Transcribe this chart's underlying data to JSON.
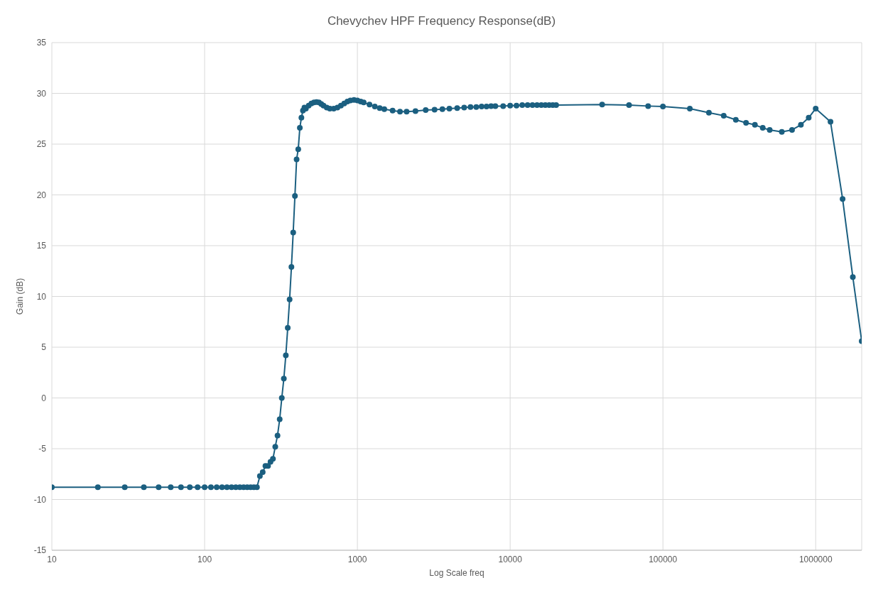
{
  "chart_data": {
    "type": "line",
    "title": "Chevychev HPF Frequency Response(dB)",
    "xlabel": "Log Scale freq",
    "ylabel": "Gain (dB)",
    "log": "x",
    "grid": true,
    "marker": "circle",
    "line_style": "solid",
    "xlim": [
      10,
      2000000
    ],
    "xticks": [
      10,
      100,
      1000,
      10000,
      100000,
      1000000
    ],
    "ylim": [
      -15,
      35
    ],
    "yticks": [
      -15,
      -10,
      -5,
      0,
      5,
      10,
      15,
      20,
      25,
      30,
      35
    ],
    "series": [
      {
        "color": "#1b5f80",
        "x": [
          10,
          20,
          30,
          40,
          50,
          60,
          70,
          80,
          90,
          100,
          110,
          120,
          130,
          140,
          150,
          160,
          170,
          180,
          190,
          200,
          210,
          220,
          230,
          240,
          250,
          260,
          270,
          280,
          290,
          300,
          310,
          320,
          330,
          340,
          350,
          360,
          370,
          380,
          390,
          400,
          410,
          420,
          430,
          440,
          450,
          460,
          480,
          500,
          520,
          540,
          560,
          580,
          600,
          630,
          660,
          700,
          740,
          780,
          820,
          860,
          900,
          950,
          1000,
          1050,
          1100,
          1200,
          1300,
          1400,
          1500,
          1700,
          1900,
          2100,
          2400,
          2800,
          3200,
          3600,
          4000,
          4500,
          5000,
          5500,
          6000,
          6500,
          7000,
          7500,
          8000,
          9000,
          10000,
          11000,
          12000,
          13000,
          14000,
          15000,
          16000,
          17000,
          18000,
          19000,
          20000,
          40000,
          60000,
          80000,
          100000,
          150000,
          200000,
          250000,
          300000,
          350000,
          400000,
          450000,
          500000,
          600000,
          700000,
          800000,
          900000,
          1000000,
          1250000,
          1500000,
          1750000,
          2000000
        ],
        "values": [
          -8.8,
          -8.8,
          -8.8,
          -8.8,
          -8.8,
          -8.8,
          -8.8,
          -8.8,
          -8.8,
          -8.8,
          -8.8,
          -8.8,
          -8.8,
          -8.8,
          -8.8,
          -8.8,
          -8.8,
          -8.8,
          -8.8,
          -8.8,
          -8.8,
          -8.8,
          -7.7,
          -7.3,
          -6.7,
          -6.7,
          -6.3,
          -6.0,
          -4.8,
          -3.7,
          -2.1,
          0,
          1.9,
          4.2,
          6.9,
          9.7,
          12.9,
          16.3,
          19.9,
          23.5,
          24.5,
          26.6,
          27.6,
          28.3,
          28.6,
          28.5,
          28.8,
          29.0,
          29.1,
          29.15,
          29.1,
          28.95,
          28.8,
          28.6,
          28.5,
          28.5,
          28.6,
          28.8,
          29.0,
          29.2,
          29.3,
          29.35,
          29.3,
          29.2,
          29.1,
          28.9,
          28.7,
          28.55,
          28.45,
          28.3,
          28.2,
          28.2,
          28.25,
          28.35,
          28.4,
          28.45,
          28.5,
          28.55,
          28.6,
          28.65,
          28.65,
          28.7,
          28.7,
          28.75,
          28.75,
          28.75,
          28.8,
          28.8,
          28.85,
          28.85,
          28.85,
          28.85,
          28.85,
          28.85,
          28.85,
          28.85,
          28.85,
          28.9,
          28.85,
          28.75,
          28.7,
          28.5,
          28.1,
          27.8,
          27.4,
          27.1,
          26.9,
          26.6,
          26.4,
          26.2,
          26.4,
          26.9,
          27.6,
          28.5,
          27.2,
          19.6,
          11.9,
          5.6
        ]
      }
    ]
  }
}
